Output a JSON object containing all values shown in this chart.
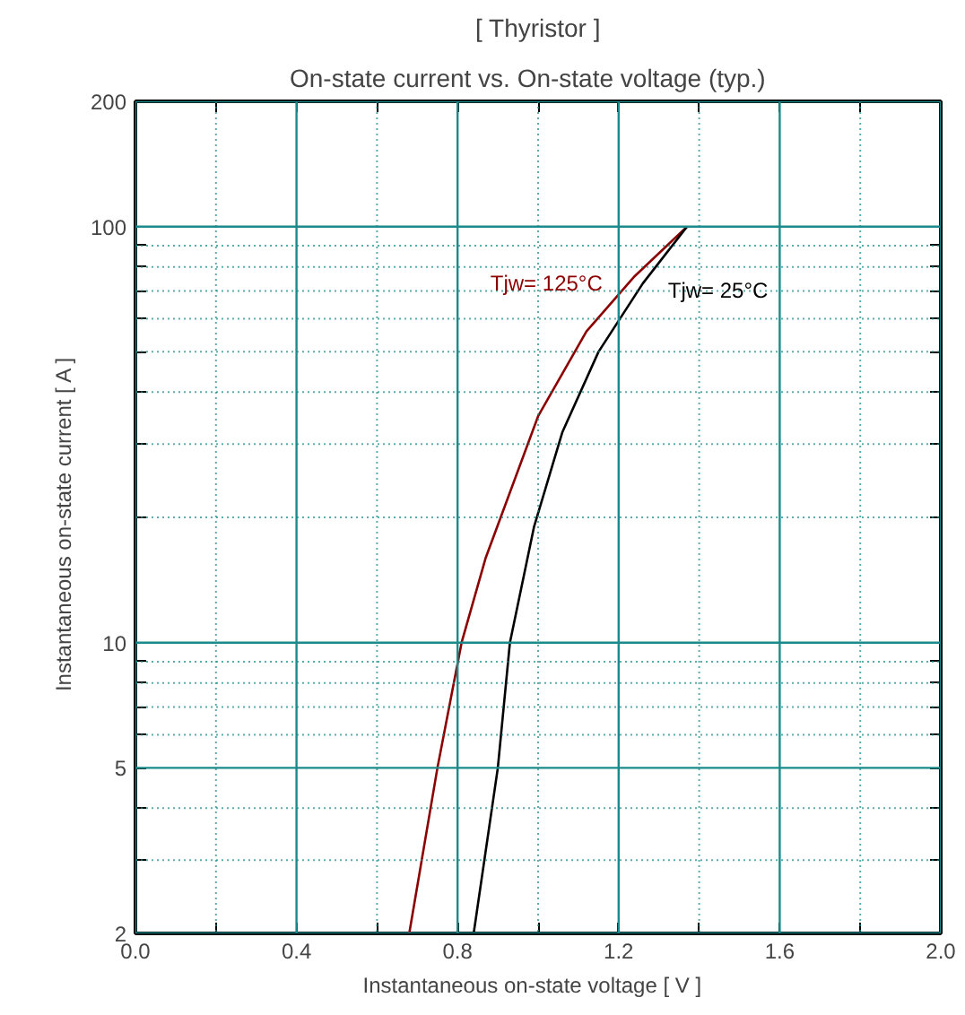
{
  "chart_data": {
    "type": "line",
    "title": "[ Thyristor ]",
    "subtitle": "On-state current  vs.  On-state voltage  (typ.)",
    "xlabel": "Instantaneous on-state voltage   [ V ]",
    "ylabel": "Instantaneous on-state current   [ A ]",
    "log": "y",
    "grid": true,
    "line_style": "solid",
    "marker": "none",
    "xlim": [
      0,
      2
    ],
    "ylim": [
      2,
      200
    ],
    "xticks": [
      {
        "value": 0,
        "label": "0.0"
      },
      {
        "value": 0.2,
        "label": null
      },
      {
        "value": 0.4,
        "label": "0.4"
      },
      {
        "value": 0.6,
        "label": null
      },
      {
        "value": 0.8,
        "label": "0.8"
      },
      {
        "value": 1.0,
        "label": null
      },
      {
        "value": 1.2,
        "label": "1.2"
      },
      {
        "value": 1.4,
        "label": null
      },
      {
        "value": 1.6,
        "label": "1.6"
      },
      {
        "value": 1.8,
        "label": null
      },
      {
        "value": 2.0,
        "label": "2.0"
      }
    ],
    "yticks": [
      2,
      {
        "value": 3,
        "label": null
      },
      {
        "value": 4,
        "label": null
      },
      5,
      {
        "value": 6,
        "label": null
      },
      {
        "value": 7,
        "label": null
      },
      {
        "value": 8,
        "label": null
      },
      {
        "value": 9,
        "label": null
      },
      10,
      {
        "value": 20,
        "label": null
      },
      {
        "value": 30,
        "label": null
      },
      {
        "value": 40,
        "label": null
      },
      {
        "value": 50,
        "label": null
      },
      {
        "value": 60,
        "label": null
      },
      {
        "value": 70,
        "label": null
      },
      {
        "value": 80,
        "label": null
      },
      {
        "value": 90,
        "label": null
      },
      100,
      200
    ],
    "series": [
      {
        "name": "Tjw= 125°C",
        "color": "#8b0000",
        "x": [
          0.68,
          0.75,
          0.81,
          0.87,
          1.0,
          1.12,
          1.24,
          1.37
        ],
        "values": [
          2,
          5,
          10,
          16,
          35,
          56,
          76,
          100
        ]
      },
      {
        "name": "Tjw= 25°C",
        "color": "#000000",
        "x": [
          0.84,
          0.9,
          0.93,
          0.99,
          1.06,
          1.15,
          1.26,
          1.37
        ],
        "values": [
          2,
          5,
          10,
          19,
          32,
          50,
          73,
          100
        ]
      }
    ]
  }
}
